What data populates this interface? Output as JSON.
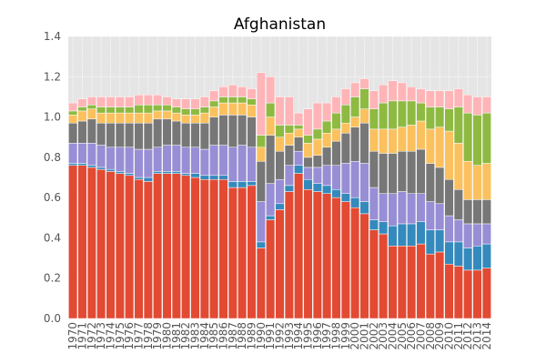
{
  "chart_data": {
    "type": "bar",
    "stacked": true,
    "title": "Afghanistan",
    "xlabel": "",
    "ylabel": "",
    "ylim": [
      0,
      1.4
    ],
    "yticks": [
      "0.0",
      "0.2",
      "0.4",
      "0.6",
      "0.8",
      "1.0",
      "1.2",
      "1.4"
    ],
    "grid": true,
    "legend": "none",
    "categories": [
      "1970",
      "1971",
      "1972",
      "1973",
      "1974",
      "1975",
      "1976",
      "1977",
      "1978",
      "1979",
      "1980",
      "1981",
      "1982",
      "1983",
      "1984",
      "1985",
      "1986",
      "1987",
      "1988",
      "1989",
      "1990",
      "1991",
      "1992",
      "1993",
      "1994",
      "1995",
      "1996",
      "1997",
      "1998",
      "1999",
      "2000",
      "2001",
      "2002",
      "2003",
      "2004",
      "2005",
      "2006",
      "2007",
      "2008",
      "2009",
      "2010",
      "2011",
      "2012",
      "2013",
      "2014"
    ],
    "colors": [
      "#E24A33",
      "#348ABD",
      "#988ED5",
      "#777777",
      "#FBC15E",
      "#8EBA42",
      "#FFB5B8"
    ],
    "series": [
      {
        "values": [
          0.76,
          0.76,
          0.75,
          0.74,
          0.73,
          0.72,
          0.71,
          0.69,
          0.68,
          0.72,
          0.72,
          0.72,
          0.71,
          0.7,
          0.69,
          0.69,
          0.69,
          0.65,
          0.65,
          0.66,
          0.35,
          0.49,
          0.54,
          0.63,
          0.72,
          0.64,
          0.63,
          0.62,
          0.6,
          0.58,
          0.55,
          0.52,
          0.44,
          0.42,
          0.36,
          0.36,
          0.36,
          0.37,
          0.32,
          0.33,
          0.27,
          0.26,
          0.24,
          0.24,
          0.25
        ]
      },
      {
        "values": [
          0.01,
          0.01,
          0.01,
          0.01,
          0.01,
          0.01,
          0.01,
          0.01,
          0.02,
          0.01,
          0.01,
          0.01,
          0.01,
          0.02,
          0.02,
          0.02,
          0.02,
          0.03,
          0.03,
          0.02,
          0.03,
          0.02,
          0.03,
          0.03,
          0.04,
          0.05,
          0.04,
          0.04,
          0.04,
          0.04,
          0.05,
          0.06,
          0.05,
          0.06,
          0.1,
          0.11,
          0.11,
          0.11,
          0.12,
          0.11,
          0.11,
          0.12,
          0.11,
          0.12,
          0.12
        ]
      },
      {
        "values": [
          0.1,
          0.1,
          0.11,
          0.11,
          0.11,
          0.12,
          0.13,
          0.14,
          0.14,
          0.12,
          0.13,
          0.13,
          0.13,
          0.13,
          0.13,
          0.15,
          0.15,
          0.17,
          0.18,
          0.17,
          0.2,
          0.16,
          0.12,
          0.1,
          0.07,
          0.06,
          0.08,
          0.1,
          0.12,
          0.15,
          0.18,
          0.19,
          0.16,
          0.14,
          0.16,
          0.16,
          0.15,
          0.14,
          0.14,
          0.13,
          0.13,
          0.11,
          0.12,
          0.11,
          0.1
        ]
      },
      {
        "values": [
          0.1,
          0.11,
          0.12,
          0.11,
          0.12,
          0.12,
          0.12,
          0.13,
          0.13,
          0.14,
          0.13,
          0.12,
          0.12,
          0.12,
          0.13,
          0.14,
          0.15,
          0.16,
          0.15,
          0.15,
          0.2,
          0.24,
          0.14,
          0.1,
          0.07,
          0.05,
          0.06,
          0.09,
          0.12,
          0.15,
          0.17,
          0.2,
          0.18,
          0.2,
          0.2,
          0.2,
          0.21,
          0.22,
          0.19,
          0.18,
          0.18,
          0.15,
          0.12,
          0.12,
          0.12
        ]
      },
      {
        "values": [
          0.04,
          0.05,
          0.05,
          0.05,
          0.05,
          0.05,
          0.05,
          0.05,
          0.05,
          0.04,
          0.04,
          0.04,
          0.04,
          0.04,
          0.05,
          0.05,
          0.06,
          0.06,
          0.06,
          0.06,
          0.07,
          0.09,
          0.07,
          0.06,
          0.04,
          0.07,
          0.08,
          0.07,
          0.06,
          0.05,
          0.05,
          0.07,
          0.11,
          0.12,
          0.12,
          0.12,
          0.13,
          0.14,
          0.17,
          0.2,
          0.24,
          0.23,
          0.19,
          0.17,
          0.18
        ]
      },
      {
        "values": [
          0.02,
          0.02,
          0.02,
          0.03,
          0.03,
          0.03,
          0.03,
          0.04,
          0.04,
          0.03,
          0.03,
          0.03,
          0.03,
          0.03,
          0.03,
          0.03,
          0.03,
          0.03,
          0.03,
          0.03,
          0.06,
          0.07,
          0.06,
          0.04,
          0.02,
          0.04,
          0.05,
          0.06,
          0.08,
          0.09,
          0.1,
          0.1,
          0.1,
          0.13,
          0.14,
          0.13,
          0.12,
          0.09,
          0.11,
          0.1,
          0.11,
          0.18,
          0.24,
          0.25,
          0.25
        ]
      },
      {
        "values": [
          0.04,
          0.04,
          0.04,
          0.05,
          0.05,
          0.05,
          0.05,
          0.05,
          0.05,
          0.05,
          0.04,
          0.04,
          0.05,
          0.05,
          0.05,
          0.05,
          0.05,
          0.06,
          0.05,
          0.05,
          0.31,
          0.13,
          0.14,
          0.14,
          0.06,
          0.13,
          0.13,
          0.09,
          0.08,
          0.08,
          0.07,
          0.05,
          0.09,
          0.09,
          0.1,
          0.09,
          0.07,
          0.07,
          0.08,
          0.08,
          0.09,
          0.09,
          0.09,
          0.09,
          0.08
        ]
      }
    ]
  }
}
